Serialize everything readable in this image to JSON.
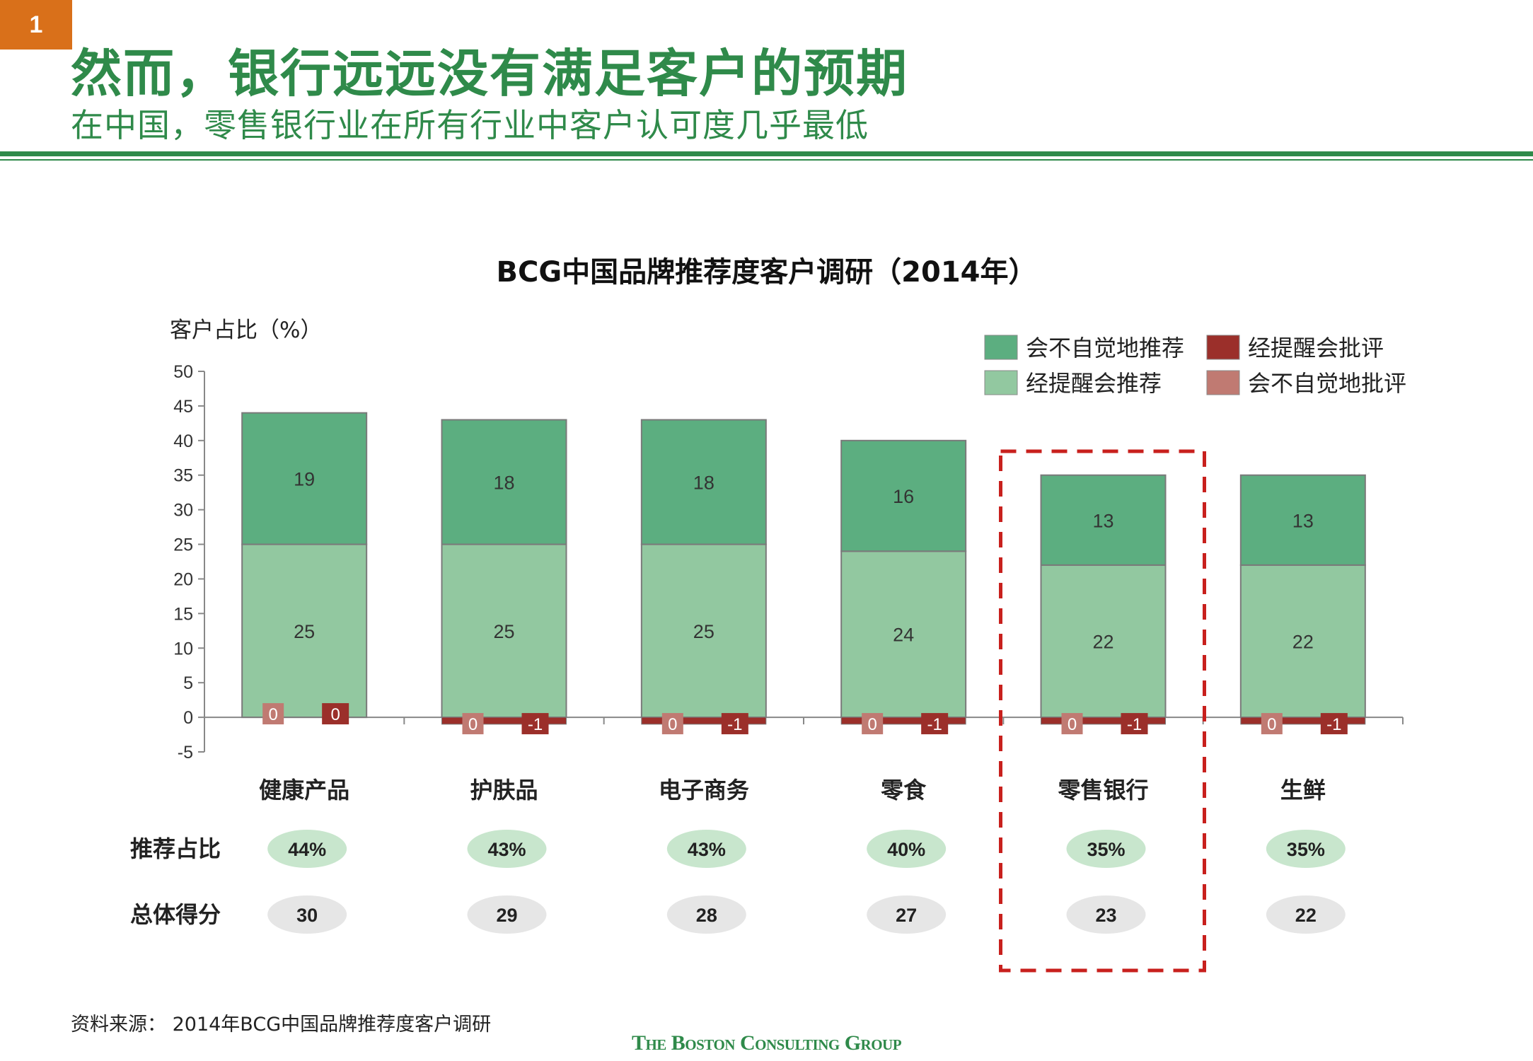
{
  "page_number": "1",
  "title": "然而，银行远远没有满足客户的预期",
  "subtitle": "在中国，零售银行业在所有行业中客户认可度几乎最低",
  "source": "资料来源： 2014年BCG中国品牌推荐度客户调研",
  "footer_logo": "The Boston Consulting Group",
  "colors": {
    "brand_green": "#2f8a4a",
    "dark_green": "#5cae80",
    "light_green": "#92c8a0",
    "dark_red": "#9b2f2a",
    "light_red": "#c07a72",
    "highlight": "#c8201d",
    "pill_green": "#c8e6cd",
    "pill_grey": "#e6e6e6"
  },
  "chart_data": {
    "type": "bar",
    "stacked": true,
    "title": "BCG中国品牌推荐度客户调研（2014年）",
    "ylabel": "客户占比（%）",
    "ylim": [
      -5,
      50
    ],
    "yticks": [
      "50",
      "45",
      "40",
      "35",
      "30",
      "25",
      "20",
      "15",
      "10",
      "5",
      "0",
      "-5"
    ],
    "categories": [
      "健康产品",
      "护肤品",
      "电子商务",
      "零食",
      "零售银行",
      "生鲜"
    ],
    "series": [
      {
        "name": "经提醒会推荐",
        "values": [
          25,
          25,
          25,
          24,
          22,
          22
        ],
        "color": "#92c8a0"
      },
      {
        "name": "会不自觉地推荐",
        "values": [
          19,
          18,
          18,
          16,
          13,
          13
        ],
        "color": "#5cae80"
      },
      {
        "name": "会不自觉地批评",
        "values": [
          0,
          0,
          0,
          0,
          0,
          0
        ],
        "color": "#c07a72"
      },
      {
        "name": "经提醒会批评",
        "values": [
          0,
          -1,
          -1,
          -1,
          -1,
          -1
        ],
        "color": "#9b2f2a"
      }
    ],
    "legend": [
      "会不自觉地推荐",
      "经提醒会推荐",
      "经提醒会批评",
      "会不自觉地批评"
    ],
    "legend_position": "top-right",
    "highlight_category": "零售银行",
    "rows": [
      {
        "label": "推荐占比",
        "values": [
          "44%",
          "43%",
          "43%",
          "40%",
          "35%",
          "35%"
        ],
        "style": "green"
      },
      {
        "label": "总体得分",
        "values": [
          "30",
          "29",
          "28",
          "27",
          "23",
          "22"
        ],
        "style": "grey"
      }
    ]
  }
}
